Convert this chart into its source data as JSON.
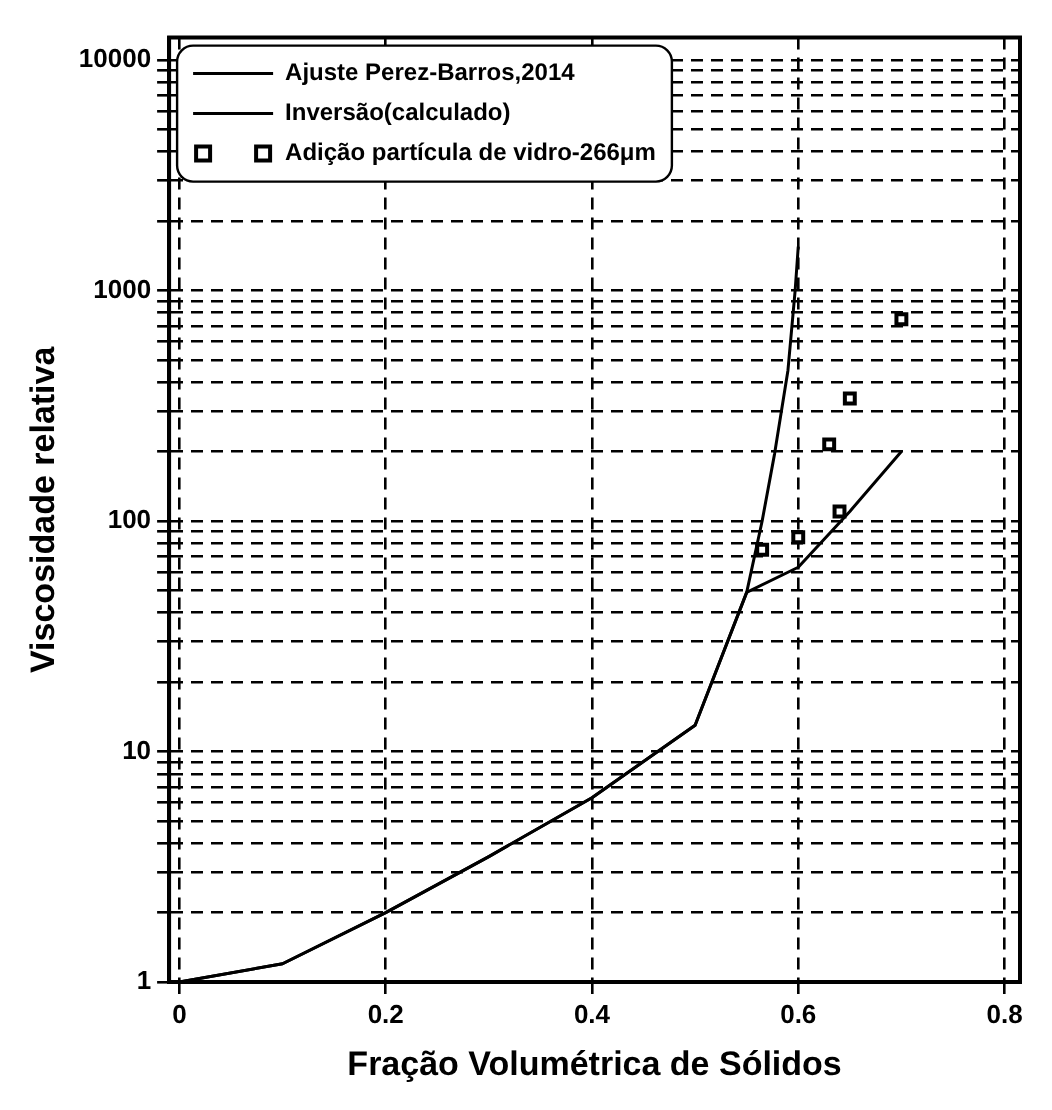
{
  "chart_data": {
    "type": "line",
    "xlabel": "Fração Volumétrica de Sólidos",
    "ylabel": "Viscosidade relativa",
    "log": "y",
    "grid": true,
    "legend": "top left",
    "line_style": "solid",
    "xlim": [
      -0.01,
      0.815
    ],
    "xticks": [
      0,
      0.2,
      0.4,
      0.6,
      0.8
    ],
    "ylim": [
      1,
      12500
    ],
    "yticks": [
      1,
      {
        "value": 2,
        "label": null
      },
      {
        "value": 3,
        "label": null
      },
      {
        "value": 4,
        "label": null
      },
      {
        "value": 5,
        "label": null
      },
      {
        "value": 6,
        "label": null
      },
      {
        "value": 7,
        "label": null
      },
      {
        "value": 8,
        "label": null
      },
      {
        "value": 9,
        "label": null
      },
      10,
      {
        "value": 20,
        "label": null
      },
      {
        "value": 30,
        "label": null
      },
      {
        "value": 40,
        "label": null
      },
      {
        "value": 50,
        "label": null
      },
      {
        "value": 60,
        "label": null
      },
      {
        "value": 70,
        "label": null
      },
      {
        "value": 80,
        "label": null
      },
      {
        "value": 90,
        "label": null
      },
      100,
      {
        "value": 200,
        "label": null
      },
      {
        "value": 300,
        "label": null
      },
      {
        "value": 400,
        "label": null
      },
      {
        "value": 500,
        "label": null
      },
      {
        "value": 600,
        "label": null
      },
      {
        "value": 700,
        "label": null
      },
      {
        "value": 800,
        "label": null
      },
      {
        "value": 900,
        "label": null
      },
      1000,
      {
        "value": 2000,
        "label": null
      },
      {
        "value": 3000,
        "label": null
      },
      {
        "value": 4000,
        "label": null
      },
      {
        "value": 5000,
        "label": null
      },
      {
        "value": 6000,
        "label": null
      },
      {
        "value": 7000,
        "label": null
      },
      {
        "value": 8000,
        "label": null
      },
      {
        "value": 9000,
        "label": null
      },
      10000
    ],
    "series": [
      {
        "name": "Ajuste Perez-Barros,2014",
        "type": "line",
        "color": "#000000",
        "x": [
          0,
          0.1,
          0.2,
          0.3,
          0.4,
          0.5,
          0.55,
          0.565,
          0.577,
          0.59,
          0.597,
          0.6
        ],
        "values": [
          1,
          1.2,
          2,
          3.5,
          6.3,
          13,
          49,
          100,
          195,
          450,
          1000,
          1550
        ]
      },
      {
        "name": "Inversão(calculado)",
        "type": "line",
        "color": "#000000",
        "x": [
          0,
          0.1,
          0.2,
          0.3,
          0.4,
          0.5,
          0.55,
          0.6,
          0.65,
          0.7
        ],
        "values": [
          1,
          1.2,
          2,
          3.5,
          6.3,
          13,
          49,
          63,
          110,
          200
        ]
      },
      {
        "name": "Adição partícula de vidro-266μm",
        "type": "scatter",
        "marker": "square",
        "color": "#000000",
        "x": [
          0.565,
          0.6,
          0.63,
          0.64,
          0.65,
          0.7
        ],
        "values": [
          75,
          85,
          215,
          110,
          340,
          750
        ]
      }
    ]
  }
}
